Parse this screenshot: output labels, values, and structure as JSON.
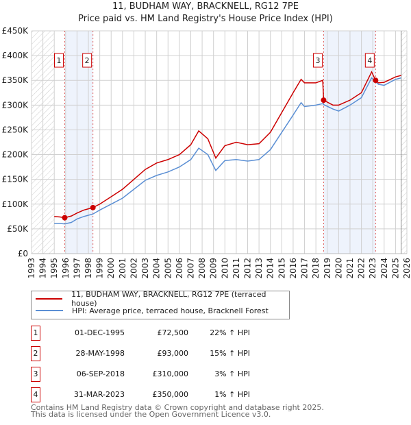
{
  "title": "11, BUDHAM WAY, BRACKNELL, RG12 7PE",
  "subtitle": "Price paid vs. HM Land Registry's House Price Index (HPI)",
  "chart_data": {
    "type": "line",
    "xlim": [
      1993,
      2026
    ],
    "ylim": [
      0,
      450000
    ],
    "yticks": [
      {
        "v": 0,
        "l": "£0"
      },
      {
        "v": 50000,
        "l": "£50K"
      },
      {
        "v": 100000,
        "l": "£100K"
      },
      {
        "v": 150000,
        "l": "£150K"
      },
      {
        "v": 200000,
        "l": "£200K"
      },
      {
        "v": 250000,
        "l": "£250K"
      },
      {
        "v": 300000,
        "l": "£300K"
      },
      {
        "v": 350000,
        "l": "£350K"
      },
      {
        "v": 400000,
        "l": "£400K"
      },
      {
        "v": 450000,
        "l": "£450K"
      }
    ],
    "xticks": [
      "1993",
      "1994",
      "1995",
      "1996",
      "1997",
      "1998",
      "1999",
      "2000",
      "2001",
      "2002",
      "2003",
      "2004",
      "2005",
      "2006",
      "2007",
      "2008",
      "2009",
      "2010",
      "2011",
      "2012",
      "2013",
      "2014",
      "2015",
      "2016",
      "2017",
      "2018",
      "2019",
      "2020",
      "2021",
      "2022",
      "2023",
      "2024",
      "2025",
      "2026"
    ],
    "hatched_ranges": [
      [
        1993,
        1995
      ],
      [
        2025.5,
        2026
      ]
    ],
    "shaded_ranges": [
      [
        1995.92,
        1998.4
      ],
      [
        2018.68,
        2023.25
      ]
    ],
    "grid": true,
    "series": [
      {
        "name": "11, BUDHAM WAY, BRACKNELL, RG12 7PE (terraced house)",
        "color": "#cc0000",
        "x": [
          1995,
          1995.5,
          1995.92,
          1996.5,
          1997,
          1997.6,
          1998.4,
          1999,
          2000,
          2001,
          2002,
          2003,
          2004,
          2005,
          2006,
          2007,
          2007.7,
          2008.5,
          2009.2,
          2010,
          2011,
          2012,
          2013,
          2014,
          2015,
          2016,
          2016.7,
          2017,
          2018,
          2018.6,
          2018.68,
          2019.5,
          2020,
          2021,
          2022,
          2022.9,
          2023.25,
          2023.5,
          2024,
          2025,
          2025.5
        ],
        "y": [
          75000,
          74000,
          72500,
          76000,
          82000,
          88000,
          93000,
          100000,
          115000,
          130000,
          150000,
          170000,
          183000,
          190000,
          200000,
          220000,
          248000,
          232000,
          193000,
          218000,
          225000,
          220000,
          222000,
          245000,
          285000,
          325000,
          352000,
          345000,
          345000,
          350000,
          310000,
          300000,
          300000,
          310000,
          325000,
          367000,
          350000,
          345000,
          346000,
          357000,
          360000
        ]
      },
      {
        "name": "HPI: Average price, terraced house, Bracknell Forest",
        "color": "#5b8fd4",
        "x": [
          1995,
          1995.5,
          1995.92,
          1996.5,
          1997,
          1997.6,
          1998.4,
          1999,
          2000,
          2001,
          2002,
          2003,
          2004,
          2005,
          2006,
          2007,
          2007.7,
          2008.5,
          2009.2,
          2010,
          2011,
          2012,
          2013,
          2014,
          2015,
          2016,
          2016.7,
          2017,
          2018,
          2018.6,
          2018.68,
          2019.5,
          2020,
          2021,
          2022,
          2022.9,
          2023.25,
          2023.5,
          2024,
          2025,
          2025.5
        ],
        "y": [
          61000,
          61000,
          60000,
          63000,
          70000,
          75000,
          80000,
          88000,
          100000,
          112000,
          130000,
          148000,
          158000,
          165000,
          175000,
          190000,
          213000,
          200000,
          168000,
          188000,
          190000,
          187000,
          190000,
          210000,
          245000,
          280000,
          305000,
          297000,
          300000,
          303000,
          301000,
          292000,
          288000,
          300000,
          315000,
          355000,
          347000,
          342000,
          340000,
          352000,
          355000
        ]
      }
    ],
    "sales": [
      {
        "id": "1",
        "x": 1995.92,
        "y": 72500
      },
      {
        "id": "2",
        "x": 1998.4,
        "y": 93000
      },
      {
        "id": "3",
        "x": 2018.68,
        "y": 310000
      },
      {
        "id": "4",
        "x": 2023.25,
        "y": 350000
      }
    ]
  },
  "legend": {
    "red": "11, BUDHAM WAY, BRACKNELL, RG12 7PE (terraced house)",
    "blue": "HPI: Average price, terraced house, Bracknell Forest"
  },
  "transactions": [
    {
      "id": "1",
      "date": "01-DEC-1995",
      "price": "£72,500",
      "hpi": "22% ↑ HPI"
    },
    {
      "id": "2",
      "date": "28-MAY-1998",
      "price": "£93,000",
      "hpi": "15% ↑ HPI"
    },
    {
      "id": "3",
      "date": "06-SEP-2018",
      "price": "£310,000",
      "hpi": "3% ↑ HPI"
    },
    {
      "id": "4",
      "date": "31-MAR-2023",
      "price": "£350,000",
      "hpi": "1% ↑ HPI"
    }
  ],
  "footer": {
    "line1": "Contains HM Land Registry data © Crown copyright and database right 2025.",
    "line2": "This data is licensed under the Open Government Licence v3.0."
  }
}
